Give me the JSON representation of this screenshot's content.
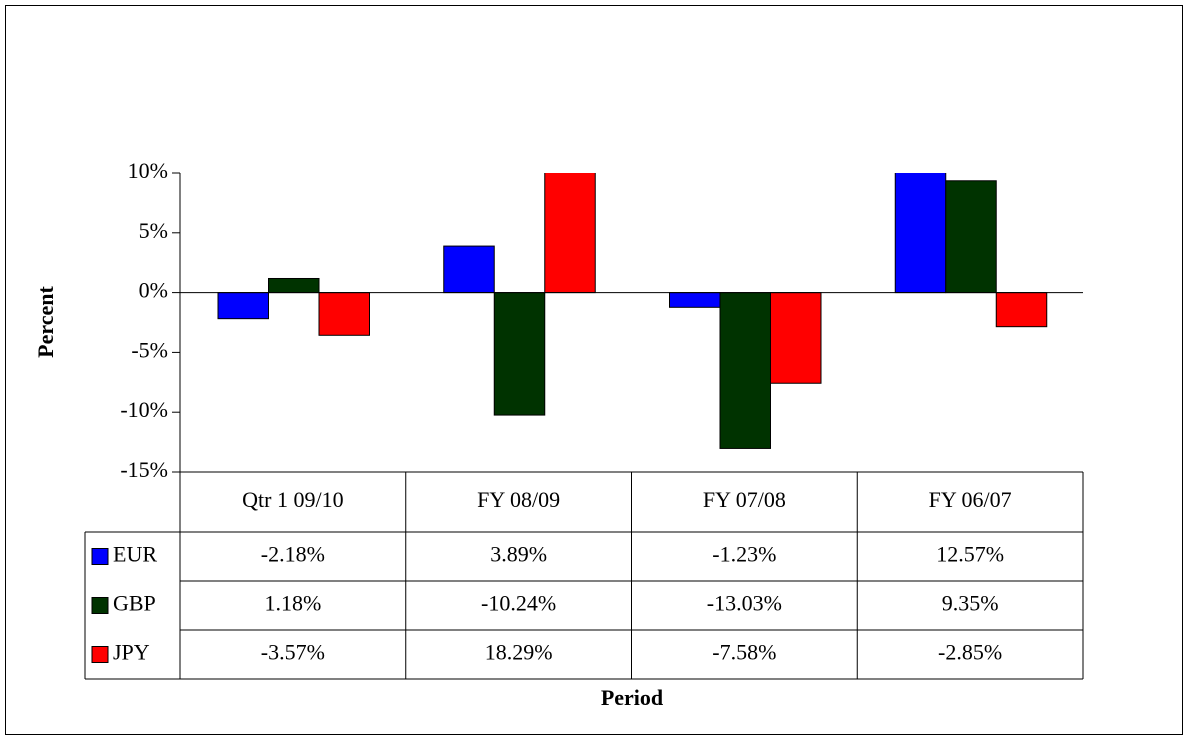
{
  "chart_data": {
    "type": "bar",
    "x_label": "Period",
    "y_label": "Percent",
    "categories": [
      "Qtr 1 09/10",
      "FY 08/09",
      "FY 07/08",
      "FY 06/07"
    ],
    "series": [
      {
        "name": "EUR",
        "color": "#0000ff",
        "values": [
          -2.18,
          3.89,
          -1.23,
          12.57
        ],
        "value_labels": [
          "-2.18%",
          "3.89%",
          "-1.23%",
          "12.57%"
        ]
      },
      {
        "name": "GBP",
        "color": "#003300",
        "values": [
          1.18,
          -10.24,
          -13.03,
          9.35
        ],
        "value_labels": [
          "1.18%",
          "-10.24%",
          "-13.03%",
          "9.35%"
        ]
      },
      {
        "name": "JPY",
        "color": "#ff0000",
        "values": [
          -3.57,
          18.29,
          -7.58,
          -2.85
        ],
        "value_labels": [
          "-3.57%",
          "18.29%",
          "-7.58%",
          "-2.85%"
        ]
      }
    ],
    "ylim": [
      -15,
      10
    ],
    "yticks": [
      {
        "value": -15,
        "label": "-15%"
      },
      {
        "value": -10,
        "label": "-10%"
      },
      {
        "value": -5,
        "label": "-5%"
      },
      {
        "value": 0,
        "label": "0%"
      },
      {
        "value": 5,
        "label": "5%"
      },
      {
        "value": 10,
        "label": "10%"
      }
    ]
  }
}
